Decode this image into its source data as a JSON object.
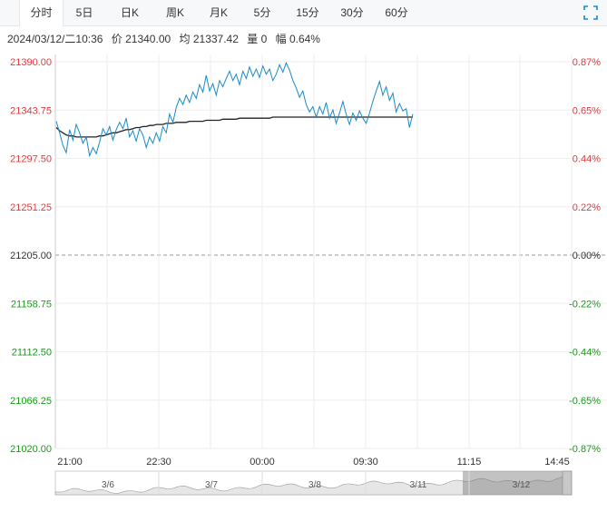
{
  "tabs": [
    {
      "label": "分时",
      "active": true
    },
    {
      "label": "5日",
      "active": false
    },
    {
      "label": "日K",
      "active": false
    },
    {
      "label": "周K",
      "active": false
    },
    {
      "label": "月K",
      "active": false
    },
    {
      "label": "5分",
      "active": false
    },
    {
      "label": "15分",
      "active": false
    },
    {
      "label": "30分",
      "active": false
    },
    {
      "label": "60分",
      "active": false
    }
  ],
  "fullscreen_icon": "expand-icon",
  "info": {
    "datetime": "2024/03/12/二10:36",
    "price": "价 21340.00",
    "avg": "均 21337.42",
    "volume": "量 0",
    "change": "幅 0.64%"
  },
  "colors": {
    "up": "#e4393c",
    "down": "#1a9a1a",
    "price_line": "#1b8ac7",
    "avg_line": "#222222",
    "grid": "#eeeeee"
  },
  "chart_data": {
    "type": "line",
    "ylim": [
      21020.0,
      21390.0
    ],
    "base": 21205.0,
    "y_ticks": [
      "21390.00",
      "21343.75",
      "21297.50",
      "21251.25",
      "21205.00",
      "21158.75",
      "21112.50",
      "21066.25",
      "21020.00"
    ],
    "pct_ticks": [
      "0.87%",
      "0.65%",
      "0.44%",
      "0.22%",
      "0.00%",
      "-0.22%",
      "-0.44%",
      "-0.65%",
      "-0.87%"
    ],
    "x_ticks": [
      "21:00",
      "22:30",
      "00:00",
      "09:30",
      "11:15",
      "14:45"
    ],
    "series": [
      {
        "values": [
          21333,
          21322,
          21310,
          21303,
          21325,
          21315,
          21330,
          21322,
          21312,
          21318,
          21300,
          21308,
          21302,
          21313,
          21326,
          21320,
          21328,
          21315,
          21325,
          21332,
          21326,
          21336,
          21318,
          21324,
          21314,
          21326,
          21320,
          21308,
          21318,
          21312,
          21322,
          21314,
          21328,
          21322,
          21340,
          21332,
          21346,
          21355,
          21349,
          21358,
          21351,
          21361,
          21355,
          21368,
          21361,
          21377,
          21362,
          21369,
          21358,
          21372,
          21366,
          21374,
          21381,
          21372,
          21378,
          21368,
          21381,
          21374,
          21385,
          21376,
          21383,
          21375,
          21386,
          21378,
          21383,
          21372,
          21378,
          21387,
          21380,
          21389,
          21382,
          21372,
          21365,
          21356,
          21362,
          21349,
          21342,
          21347,
          21337,
          21347,
          21340,
          21351,
          21336,
          21344,
          21331,
          21341,
          21352,
          21340,
          21330,
          21341,
          21334,
          21343,
          21336,
          21331,
          21341,
          21352,
          21362,
          21371,
          21358,
          21366,
          21353,
          21360,
          21342,
          21350,
          21343,
          21345,
          21327,
          21340
        ]
      },
      {
        "values": [
          21327,
          21324,
          21322,
          21320,
          21319,
          21319,
          21318,
          21318,
          21318,
          21318,
          21318,
          21318,
          21318,
          21319,
          21319,
          21320,
          21321,
          21322,
          21322,
          21323,
          21324,
          21325,
          21325,
          21326,
          21327,
          21327,
          21328,
          21328,
          21329,
          21329,
          21330,
          21330,
          21330,
          21331,
          21331,
          21331,
          21332,
          21332,
          21332,
          21332,
          21333,
          21333,
          21333,
          21333,
          21333,
          21334,
          21334,
          21334,
          21334,
          21334,
          21335,
          21335,
          21335,
          21335,
          21335,
          21336,
          21336,
          21336,
          21336,
          21336,
          21336,
          21336,
          21336,
          21336,
          21336,
          21337,
          21337,
          21337,
          21337,
          21337,
          21337,
          21337,
          21337,
          21337,
          21337,
          21337,
          21337,
          21337,
          21337,
          21337,
          21337,
          21337,
          21337,
          21337,
          21337,
          21337,
          21337,
          21337,
          21337,
          21337,
          21337,
          21337,
          21337,
          21337,
          21337,
          21337,
          21337,
          21337,
          21337,
          21337,
          21337,
          21337,
          21337,
          21337,
          21337,
          21337,
          21337,
          21337
        ]
      }
    ]
  },
  "navigator": {
    "labels": [
      "3/6",
      "3/7",
      "3/8",
      "3/11",
      "3/12"
    ]
  }
}
